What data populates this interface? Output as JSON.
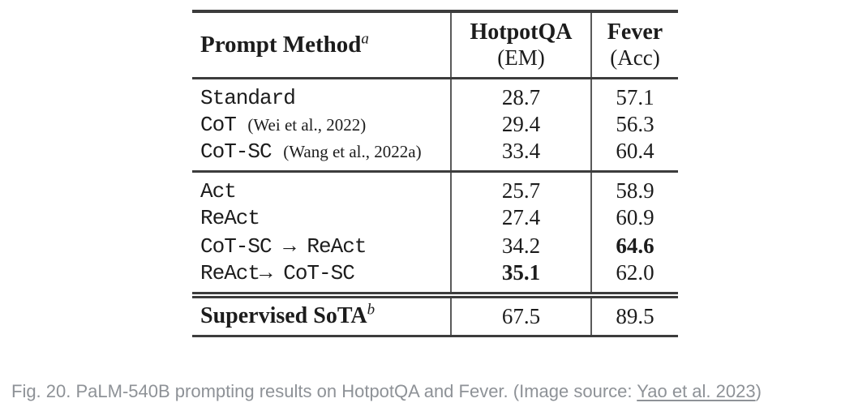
{
  "table": {
    "header": {
      "method_label": "Prompt Method",
      "method_sup": "a",
      "col2_title": "HotpotQA",
      "col2_unit": "(EM)",
      "col3_title": "Fever",
      "col3_unit": "(Acc)"
    },
    "group1": [
      {
        "method": "Standard",
        "citation": "",
        "hotpotqa": "28.7",
        "fever": "57.1"
      },
      {
        "method": "CoT",
        "citation": "(Wei et al., 2022)",
        "hotpotqa": "29.4",
        "fever": "56.3"
      },
      {
        "method": "CoT-SC",
        "citation": "(Wang et al., 2022a)",
        "hotpotqa": "33.4",
        "fever": "60.4"
      }
    ],
    "group2": [
      {
        "method": "Act",
        "hotpotqa": "25.7",
        "fever": "58.9"
      },
      {
        "method": "ReAct",
        "hotpotqa": "27.4",
        "fever": "60.9"
      },
      {
        "method": "CoT-SC → ReAct",
        "hotpotqa": "34.2",
        "fever": "64.6"
      },
      {
        "method": "ReAct→ CoT-SC",
        "hotpotqa": "35.1",
        "fever": "62.0"
      }
    ],
    "footer": {
      "method_label": "Supervised SoTA",
      "method_sup": "b",
      "hotpotqa": "67.5",
      "fever": "89.5"
    }
  },
  "caption": {
    "prefix": "Fig. 20. PaLM-540B prompting results on HotpotQA and Fever. (Image source: ",
    "link_text": "Yao et al. 2023",
    "suffix": ")"
  }
}
